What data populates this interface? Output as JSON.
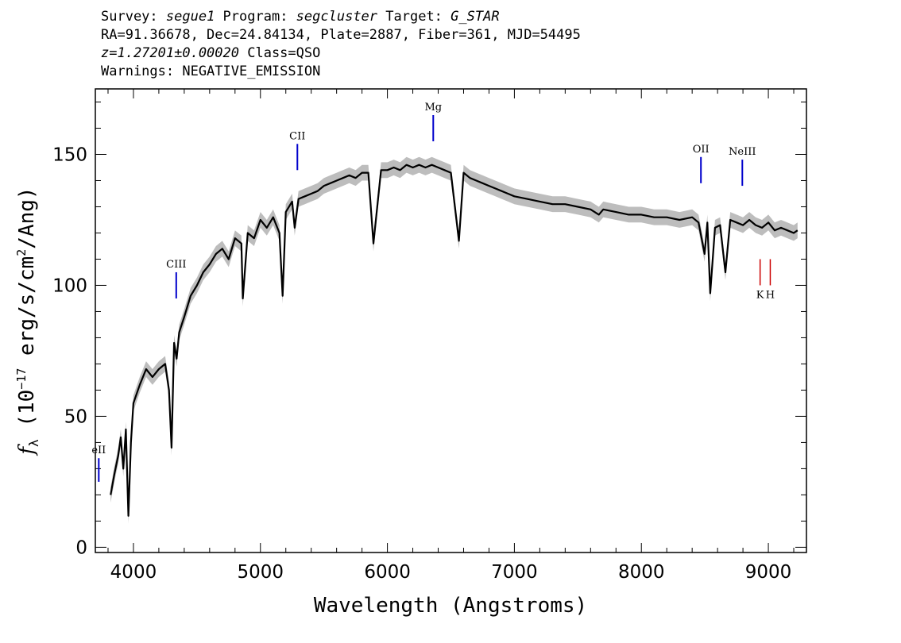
{
  "header": {
    "line1": {
      "survey_label": "Survey: ",
      "survey": "segue1",
      "program_label": " Program: ",
      "program": "segcluster",
      "target_label": " Target: ",
      "target": "G_STAR"
    },
    "line2": "RA=91.36678, Dec=24.84134, Plate=2887, Fiber=361, MJD=54495",
    "line3": {
      "z": "z=1.27201±0.00020",
      "class": " Class=QSO"
    },
    "line4": "Warnings: NEGATIVE_EMISSION"
  },
  "colors": {
    "flux": "#000000",
    "error_band": "#bdbdbd",
    "emission_line": "#0000cc",
    "absorption_line": "#cc0000"
  },
  "chart_data": {
    "type": "line",
    "xlabel": "Wavelength (Angstroms)",
    "ylabel": "f_λ (10^-17 erg/s/cm^2/Ang)",
    "ylabel_parts": {
      "f": "f",
      "sub": "λ",
      "a": " (10",
      "exp1": "−17",
      "b": " erg/s/cm",
      "exp2": "2",
      "c": "/Ang)"
    },
    "xlim": [
      3700,
      9300
    ],
    "ylim": [
      -2,
      175
    ],
    "x_ticks": [
      4000,
      5000,
      6000,
      7000,
      8000,
      9000
    ],
    "y_ticks": [
      0,
      50,
      100,
      150
    ],
    "grid": false,
    "series": [
      {
        "x": [
          3820,
          3850,
          3880,
          3900,
          3920,
          3940,
          3960,
          3980,
          4000,
          4050,
          4100,
          4150,
          4200,
          4250,
          4280,
          4300,
          4320,
          4340,
          4360,
          4400,
          4450,
          4500,
          4550,
          4600,
          4650,
          4700,
          4750,
          4800,
          4850,
          4861,
          4900,
          4950,
          5000,
          5050,
          5100,
          5150,
          5175,
          5200,
          5250,
          5270,
          5300,
          5350,
          5400,
          5450,
          5500,
          5550,
          5600,
          5650,
          5700,
          5750,
          5800,
          5850,
          5890,
          5950,
          6000,
          6050,
          6100,
          6150,
          6200,
          6250,
          6300,
          6350,
          6400,
          6450,
          6500,
          6563,
          6600,
          6650,
          6700,
          6750,
          6800,
          6850,
          6900,
          6950,
          7000,
          7100,
          7200,
          7300,
          7400,
          7500,
          7600,
          7665,
          7700,
          7800,
          7900,
          8000,
          8100,
          8200,
          8300,
          8400,
          8450,
          8498,
          8520,
          8542,
          8580,
          8620,
          8662,
          8700,
          8750,
          8800,
          8850,
          8900,
          8950,
          9000,
          9050,
          9100,
          9150,
          9200,
          9230
        ],
        "y": [
          20,
          28,
          35,
          42,
          30,
          45,
          12,
          40,
          55,
          62,
          68,
          65,
          68,
          70,
          60,
          38,
          78,
          72,
          82,
          88,
          96,
          100,
          105,
          108,
          112,
          114,
          110,
          118,
          116,
          95,
          120,
          118,
          125,
          122,
          126,
          120,
          96,
          128,
          132,
          122,
          133,
          134,
          135,
          136,
          138,
          139,
          140,
          141,
          142,
          141,
          143,
          143,
          116,
          144,
          144,
          145,
          144,
          146,
          145,
          146,
          145,
          146,
          145,
          144,
          143,
          117,
          143,
          141,
          140,
          139,
          138,
          137,
          136,
          135,
          134,
          133,
          132,
          131,
          131,
          130,
          129,
          127,
          129,
          128,
          127,
          127,
          126,
          126,
          125,
          126,
          124,
          112,
          124,
          97,
          122,
          123,
          105,
          125,
          124,
          123,
          125,
          123,
          122,
          124,
          121,
          122,
          121,
          120,
          121
        ]
      }
    ],
    "annotations": [
      {
        "label": "eII",
        "x": 3727,
        "y0": 25,
        "y1": 34,
        "kind": "emission"
      },
      {
        "label": "CIII",
        "x": 4337,
        "y0": 95,
        "y1": 105,
        "kind": "emission"
      },
      {
        "label": "CII",
        "x": 5291,
        "y0": 144,
        "y1": 154,
        "kind": "emission"
      },
      {
        "label": "Mg",
        "x": 6361,
        "y0": 155,
        "y1": 165,
        "kind": "emission"
      },
      {
        "label": "OII",
        "x": 8469,
        "y0": 139,
        "y1": 149,
        "kind": "emission"
      },
      {
        "label": "NeIII",
        "x": 8795,
        "y0": 138,
        "y1": 148,
        "kind": "emission"
      },
      {
        "label": "K",
        "x": 8935,
        "y0": 100,
        "y1": 110,
        "kind": "absorption"
      },
      {
        "label": "H",
        "x": 9015,
        "y0": 100,
        "y1": 110,
        "kind": "absorption"
      }
    ]
  }
}
